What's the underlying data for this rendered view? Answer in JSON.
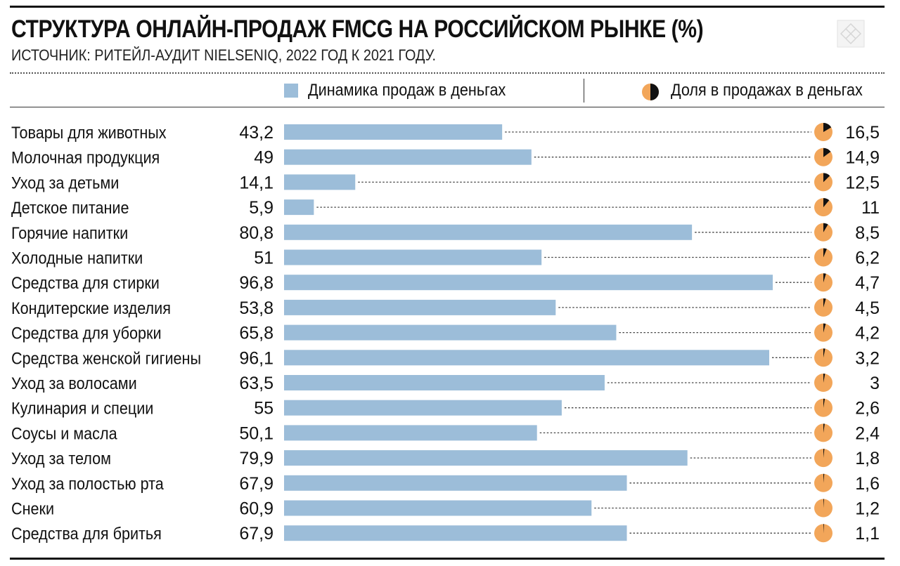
{
  "chart_data": {
    "type": "bar",
    "title": "СТРУКТУРА ОНЛАЙН-ПРОДАЖ FMCG НА РОССИЙСКОМ РЫНКЕ (%)",
    "subtitle": "ИСТОЧНИК: РИТЕЙЛ-АУДИТ NIELSENIQ, 2022 ГОД К 2021 ГОДУ.",
    "legend": {
      "bars": "Динамика продаж в деньгах",
      "pies": "Доля в продажах в деньгах"
    },
    "xlim": [
      0,
      100
    ],
    "colors": {
      "bar": "#9cbdd9",
      "pie": "#f2a65a",
      "pie_share": "#111111"
    },
    "categories": [
      "Товары для животных",
      "Молочная продукция",
      "Уход за детьми",
      "Детское питание",
      "Горячие напитки",
      "Холодные напитки",
      "Средства для стирки",
      "Кондитерские изделия",
      "Средства для уборки",
      "Средства женской гигиены",
      "Уход за волосами",
      "Кулинария и специи",
      "Соусы и масла",
      "Уход за телом",
      "Уход за полостью рта",
      "Снеки",
      "Средства для бритья"
    ],
    "series": [
      {
        "name": "Динамика продаж в деньгах",
        "values": [
          43.2,
          49,
          14.1,
          5.9,
          80.8,
          51,
          96.8,
          53.8,
          65.8,
          96.1,
          63.5,
          55,
          50.1,
          79.9,
          67.9,
          60.9,
          67.9
        ],
        "labels": [
          "43,2",
          "49",
          "14,1",
          "5,9",
          "80,8",
          "51",
          "96,8",
          "53,8",
          "65,8",
          "96,1",
          "63,5",
          "55",
          "50,1",
          "79,9",
          "67,9",
          "60,9",
          "67,9"
        ]
      },
      {
        "name": "Доля в продажах в деньгах",
        "values": [
          16.5,
          14.9,
          12.5,
          11,
          8.5,
          6.2,
          4.7,
          4.5,
          4.2,
          3.2,
          3,
          2.6,
          2.4,
          1.8,
          1.6,
          1.2,
          1.1
        ],
        "labels": [
          "16,5",
          "14,9",
          "12,5",
          "11",
          "8,5",
          "6,2",
          "4,7",
          "4,5",
          "4,2",
          "3,2",
          "3",
          "2,6",
          "2,4",
          "1,8",
          "1,6",
          "1,2",
          "1,1"
        ]
      }
    ]
  }
}
